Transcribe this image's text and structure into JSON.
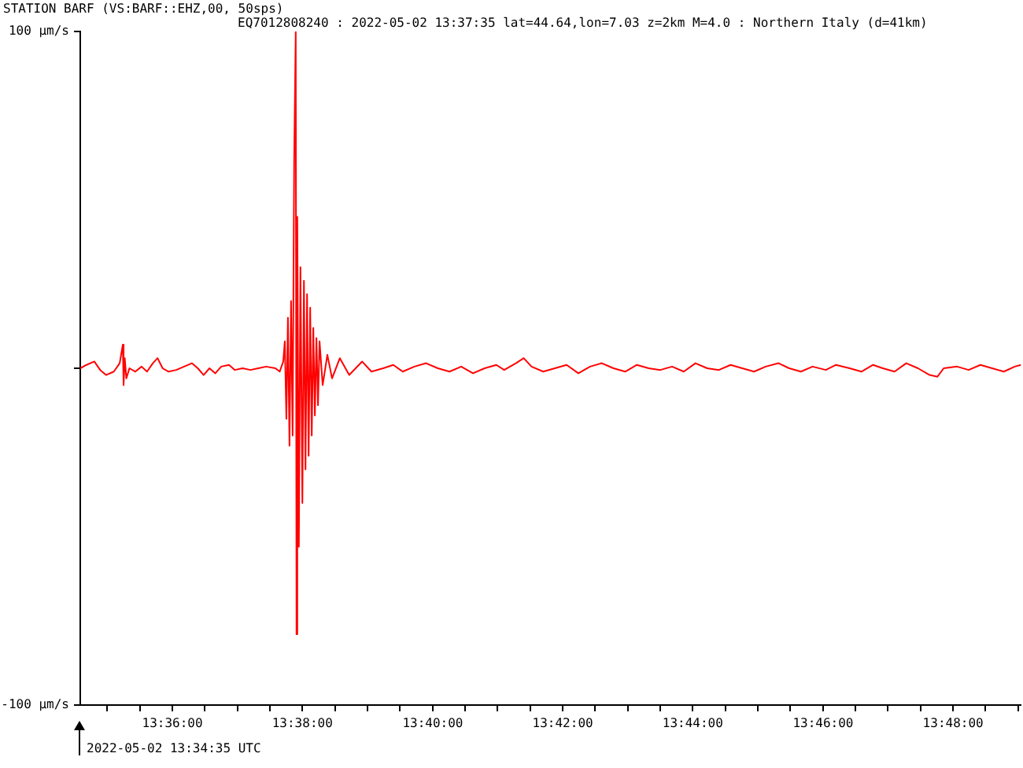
{
  "chart_data": {
    "type": "line",
    "title": "STATION BARF (VS:BARF::EHZ,00, 50sps)",
    "subtitle": "EQ7012808240 : 2022-05-02 13:37:35 lat=44.64,lon=7.03 z=2km M=4.0 : Northern Italy (d=41km)",
    "annotations": [
      "2022-05-02 13:34:35 UTC"
    ],
    "x": [
      13.5764,
      13.578,
      13.58,
      13.5815,
      13.583,
      13.585,
      13.5865,
      13.5873,
      13.5875,
      13.5878,
      13.5882,
      13.589,
      13.5905,
      13.5921,
      13.5935,
      13.595,
      13.5962,
      13.5975,
      13.599,
      13.601,
      13.603,
      13.605,
      13.6065,
      13.608,
      13.6095,
      13.611,
      13.6125,
      13.6145,
      13.616,
      13.618,
      13.62,
      13.622,
      13.624,
      13.6264,
      13.6275,
      13.6284,
      13.6288,
      13.6292,
      13.6296,
      13.63,
      13.6304,
      13.6308,
      13.6312,
      13.6316,
      13.6318,
      13.632,
      13.6324,
      13.6328,
      13.6333,
      13.6337,
      13.6341,
      13.6345,
      13.6349,
      13.6353,
      13.6357,
      13.6361,
      13.6365,
      13.6369,
      13.6373,
      13.6377,
      13.6385,
      13.6397,
      13.6409,
      13.6429,
      13.6453,
      13.6486,
      13.651,
      13.654,
      13.6566,
      13.659,
      13.662,
      13.665,
      13.668,
      13.671,
      13.674,
      13.677,
      13.68,
      13.683,
      13.685,
      13.688,
      13.69,
      13.692,
      13.695,
      13.698,
      13.701,
      13.704,
      13.707,
      13.71,
      13.713,
      13.716,
      13.719,
      13.722,
      13.725,
      13.728,
      13.731,
      13.734,
      13.737,
      13.74,
      13.743,
      13.746,
      13.749,
      13.752,
      13.7553,
      13.758,
      13.761,
      13.764,
      13.7674,
      13.77,
      13.7735,
      13.7765,
      13.7795,
      13.782,
      13.785,
      13.788,
      13.791,
      13.794,
      13.796,
      13.7976,
      13.801,
      13.804,
      13.807,
      13.81,
      13.813,
      13.8158,
      13.8174
    ],
    "series": [
      {
        "color": "#ff0000",
        "values": [
          0,
          1,
          2,
          -0.5,
          -2,
          -1,
          1.5,
          7,
          -5,
          3,
          -3,
          0,
          -1,
          0.5,
          -1,
          1.5,
          3,
          0,
          -1,
          -0.5,
          0.5,
          1.5,
          0,
          -2,
          0,
          -1.5,
          0.5,
          1,
          -0.5,
          0,
          -0.5,
          0,
          0.5,
          0,
          -1,
          2,
          8,
          -15,
          15,
          -23,
          20,
          -20,
          62,
          100,
          -79,
          45,
          -53,
          30,
          -40,
          26,
          -30,
          22,
          -26,
          18,
          -20,
          12,
          -14,
          9,
          -11,
          8,
          -5,
          4,
          -3,
          3,
          -2,
          2,
          -1,
          0,
          1,
          -1,
          0.5,
          1.5,
          0,
          -1,
          0.5,
          -1.5,
          0,
          1,
          -0.5,
          1.5,
          3,
          0.5,
          -1,
          0,
          1,
          -1.5,
          0.5,
          1.5,
          0,
          -1,
          1,
          0,
          -0.5,
          0.5,
          -1,
          1.5,
          0,
          -0.5,
          1,
          0,
          -1,
          0.5,
          1.5,
          0,
          -1,
          0.5,
          -0.5,
          1,
          0,
          -1,
          1,
          0,
          -1,
          1.5,
          0,
          -2,
          -2.5,
          0,
          0.5,
          -0.5,
          1,
          0,
          -1,
          0.5,
          1
        ]
      }
    ],
    "xlim": [
      13.5764,
      13.8174
    ],
    "xticks": [
      {
        "value": 13.5833,
        "label": null
      },
      {
        "value": 13.5917,
        "label": null
      },
      {
        "value": 13.6,
        "label": "13:36:00"
      },
      {
        "value": 13.6083,
        "label": null
      },
      {
        "value": 13.6167,
        "label": null
      },
      {
        "value": 13.625,
        "label": null
      },
      {
        "value": 13.6333,
        "label": "13:38:00"
      },
      {
        "value": 13.6417,
        "label": null
      },
      {
        "value": 13.65,
        "label": null
      },
      {
        "value": 13.6583,
        "label": null
      },
      {
        "value": 13.6667,
        "label": "13:40:00"
      },
      {
        "value": 13.675,
        "label": null
      },
      {
        "value": 13.6833,
        "label": null
      },
      {
        "value": 13.6917,
        "label": null
      },
      {
        "value": 13.7,
        "label": "13:42:00"
      },
      {
        "value": 13.7083,
        "label": null
      },
      {
        "value": 13.7167,
        "label": null
      },
      {
        "value": 13.725,
        "label": null
      },
      {
        "value": 13.7333,
        "label": "13:44:00"
      },
      {
        "value": 13.7417,
        "label": null
      },
      {
        "value": 13.75,
        "label": null
      },
      {
        "value": 13.7583,
        "label": null
      },
      {
        "value": 13.7667,
        "label": "13:46:00"
      },
      {
        "value": 13.775,
        "label": null
      },
      {
        "value": 13.7833,
        "label": null
      },
      {
        "value": 13.7917,
        "label": null
      },
      {
        "value": 13.8,
        "label": "13:48:00"
      },
      {
        "value": 13.8083,
        "label": null
      },
      {
        "value": 13.8167,
        "label": null
      }
    ],
    "ylim": [
      -100,
      100
    ],
    "yticks": [
      {
        "value": -100,
        "label": "-100 µm/s"
      },
      {
        "value": 0,
        "label": null
      },
      {
        "value": 100,
        "label": "100 µm/s"
      }
    ],
    "marker": "none",
    "line_style": "solid",
    "legend": false
  }
}
